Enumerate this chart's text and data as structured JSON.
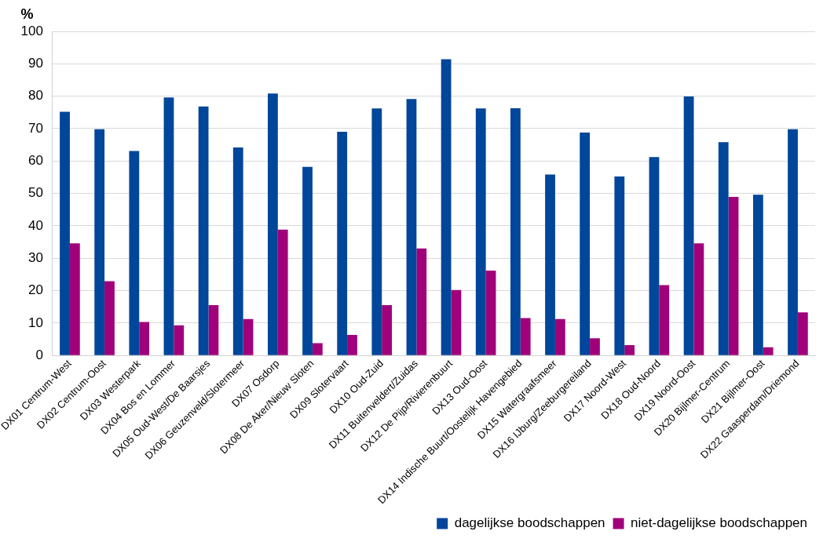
{
  "chart_data": {
    "type": "bar",
    "ylabel": "%",
    "categories": [
      "DX01 Centrum-West",
      "DX02 Centrum-Oost",
      "DX03 Westerpark",
      "DX04 Bos en Lommer",
      "DX05 Oud-West/De Baarsjes",
      "DX06 Geuzenveld/Slotermeer",
      "DX07 Osdorp",
      "DX08 De Aker/Nieuw Sloten",
      "DX09 Slotervaart",
      "DX10 Oud-Zuid",
      "DX11 Buitenveldert/Zuidas",
      "DX12 De Pijp/Rivierenbuurt",
      "DX13 Oud-Oost",
      "DX14 Indische Buurt/Oostelijk Havengebied",
      "DX15 Watergraafsmeer",
      "DX16 IJburg/Zeeburgereiland",
      "DX17 Noord-West",
      "DX18 Oud-Noord",
      "DX19 Noord-Oost",
      "DX20 Bijlmer-Centrum",
      "DX21 Bijlmer-Oost",
      "DX22 Gaasperdam/Driemond"
    ],
    "series": [
      {
        "name": "dagelijkse boodschappen",
        "color": "#00469a",
        "values": [
          75.2,
          69.8,
          63.1,
          79.6,
          76.8,
          64.2,
          80.8,
          58.2,
          69.0,
          76.2,
          79.1,
          91.4,
          76.2,
          76.3,
          55.8,
          68.8,
          55.2,
          61.2,
          79.9,
          65.8,
          49.6,
          69.8
        ]
      },
      {
        "name": "niet-dagelijkse boodschappen",
        "color": "#a0007a",
        "values": [
          34.6,
          22.9,
          10.3,
          9.3,
          15.5,
          11.2,
          38.8,
          3.8,
          6.3,
          15.5,
          33.0,
          20.2,
          26.2,
          11.5,
          11.2,
          5.3,
          3.2,
          21.7,
          34.6,
          48.9,
          2.5,
          13.3
        ]
      }
    ],
    "ylim": [
      0,
      100
    ],
    "yticks": [
      0,
      10,
      20,
      30,
      40,
      50,
      60,
      70,
      80,
      90,
      100
    ],
    "grid": "y",
    "legend": "bottom right"
  }
}
